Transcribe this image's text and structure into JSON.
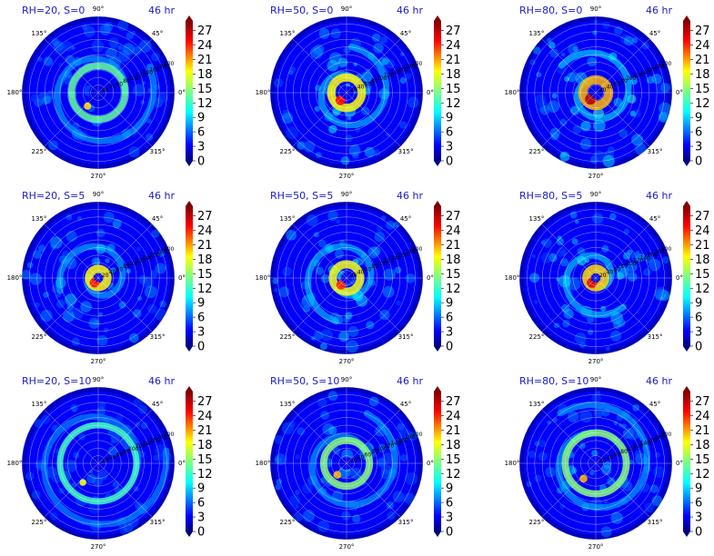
{
  "chart_data": [
    {
      "type": "heatmap",
      "projection": "polar",
      "title_left": "RH=20, S=0",
      "title_right": "46 hr",
      "intensity": 0.35,
      "eye_radius": 0.12,
      "ring_radius": 0.35,
      "ring_strength": 0.35
    },
    {
      "type": "heatmap",
      "projection": "polar",
      "title_left": "RH=50, S=0",
      "title_right": "46 hr",
      "intensity": 0.55,
      "eye_radius": 0.08,
      "ring_radius": 0.2,
      "ring_strength": 0.8
    },
    {
      "type": "heatmap",
      "projection": "polar",
      "title_left": "RH=80, S=0",
      "title_right": "46 hr",
      "intensity": 0.75,
      "eye_radius": 0.07,
      "ring_radius": 0.17,
      "ring_strength": 1.0
    },
    {
      "type": "heatmap",
      "projection": "polar",
      "title_left": "RH=20, S=5",
      "title_right": "46 hr",
      "intensity": 0.45,
      "eye_radius": 0.05,
      "ring_radius": 0.12,
      "ring_strength": 0.8
    },
    {
      "type": "heatmap",
      "projection": "polar",
      "title_left": "RH=50, S=5",
      "title_right": "46 hr",
      "intensity": 0.55,
      "eye_radius": 0.07,
      "ring_radius": 0.18,
      "ring_strength": 0.75
    },
    {
      "type": "heatmap",
      "projection": "polar",
      "title_left": "RH=80, S=5",
      "title_right": "46 hr",
      "intensity": 0.65,
      "eye_radius": 0.06,
      "ring_radius": 0.12,
      "ring_strength": 0.9
    },
    {
      "type": "heatmap",
      "projection": "polar",
      "title_left": "RH=20, S=10",
      "title_right": "46 hr",
      "intensity": 0.2,
      "eye_radius": 0.1,
      "ring_radius": 0.5,
      "ring_strength": 0.25
    },
    {
      "type": "heatmap",
      "projection": "polar",
      "title_left": "RH=50, S=10",
      "title_right": "46 hr",
      "intensity": 0.35,
      "eye_radius": 0.08,
      "ring_radius": 0.3,
      "ring_strength": 0.45
    },
    {
      "type": "heatmap",
      "projection": "polar",
      "title_left": "RH=80, S=10",
      "title_right": "46 hr",
      "intensity": 0.4,
      "eye_radius": 0.1,
      "ring_radius": 0.4,
      "ring_strength": 0.45
    }
  ],
  "polar_axes": {
    "angle_labels": [
      "0°",
      "45°",
      "90°",
      "135°",
      "180°",
      "225°",
      "270°",
      "315°"
    ],
    "radial_labels": [
      "20",
      "40",
      "60",
      "80",
      "100",
      "120",
      "140",
      "160",
      "180",
      "200"
    ]
  },
  "colorbar": {
    "colormap": "jet",
    "ticks": [
      "0",
      "3",
      "6",
      "9",
      "12",
      "15",
      "18",
      "21",
      "24",
      "27"
    ],
    "range": [
      0,
      29
    ]
  }
}
